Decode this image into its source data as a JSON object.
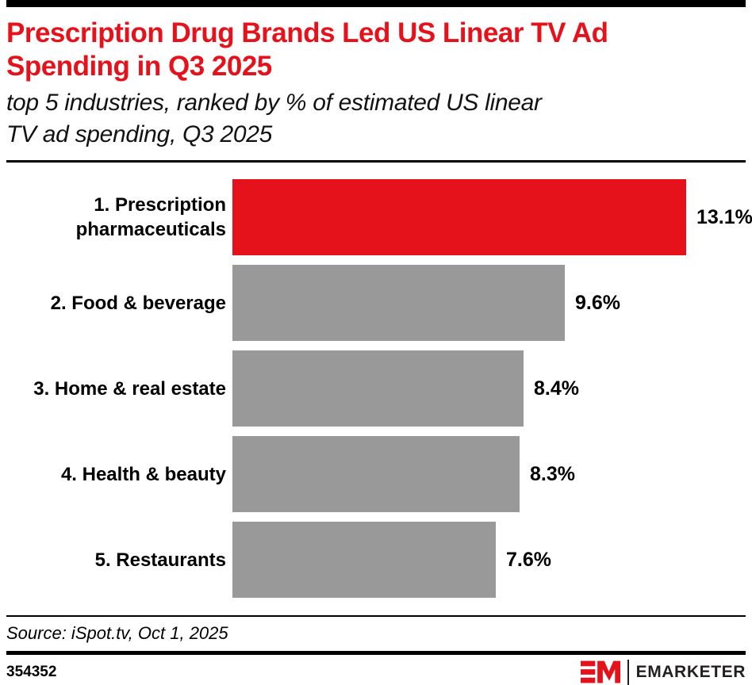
{
  "header": {
    "title_lines": [
      "Prescription Drug Brands Led US Linear TV Ad",
      "Spending in Q3 2025"
    ],
    "subtitle_lines": [
      "top 5 industries, ranked by % of estimated US linear",
      "TV ad spending, Q3 2025"
    ]
  },
  "chart_data": {
    "type": "bar",
    "orientation": "horizontal",
    "title": "Prescription Drug Brands Led US Linear TV Ad Spending in Q3 2025",
    "subtitle": "top 5 industries, ranked by % of estimated US linear TV ad spending, Q3 2025",
    "categories": [
      "1. Prescription pharmaceuticals",
      "2. Food & beverage",
      "3. Home & real estate",
      "4. Health & beauty",
      "5. Restaurants"
    ],
    "values": [
      13.1,
      9.6,
      8.4,
      8.3,
      7.6
    ],
    "value_labels": [
      "13.1%",
      "9.6%",
      "8.4%",
      "8.3%",
      "7.6%"
    ],
    "bar_colors": [
      "#E6121B",
      "#999999",
      "#999999",
      "#999999",
      "#999999"
    ],
    "highlight_color": "#E6121B",
    "default_color": "#999999",
    "xlim": [
      0,
      13.1
    ],
    "grid": false,
    "legend": "none",
    "value_label_position": "right-of-bar"
  },
  "source": {
    "text": "Source: iSpot.tv, Oct 1, 2025"
  },
  "footer": {
    "chart_id": "354352",
    "brand_name": "EMARKETER",
    "logo_color": "#E6121B"
  }
}
